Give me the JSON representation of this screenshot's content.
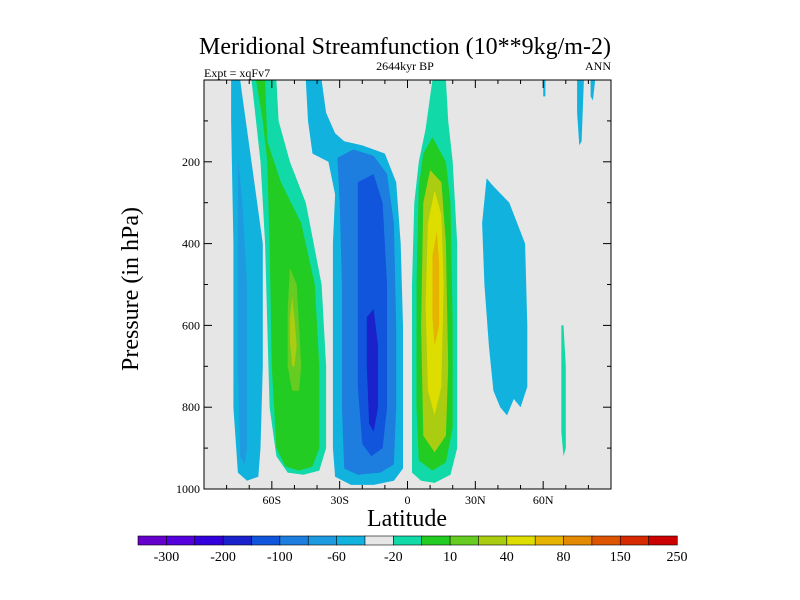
{
  "chart_data": {
    "type": "contour",
    "title": "Meridional Streamfunction (10**9kg/m-2)",
    "subtitle": "2644kyr BP",
    "left_label": "Expt = xqFv7",
    "right_label": "ANN",
    "xlabel": "Latitude",
    "ylabel": "Pressure (in hPa)",
    "xlim": [
      -90,
      90
    ],
    "ylim": [
      0,
      1000
    ],
    "y_inverted": true,
    "x_ticks": [
      {
        "value": -60,
        "label": "60S"
      },
      {
        "value": -30,
        "label": "30S"
      },
      {
        "value": 0,
        "label": "0"
      },
      {
        "value": 30,
        "label": "30N"
      },
      {
        "value": 60,
        "label": "60N"
      }
    ],
    "y_ticks": [
      {
        "value": 200,
        "label": "200"
      },
      {
        "value": 400,
        "label": "400"
      },
      {
        "value": 600,
        "label": "600"
      },
      {
        "value": 800,
        "label": "800"
      },
      {
        "value": 1000,
        "label": "1000"
      }
    ],
    "background_color": "#e6e6e6",
    "colorbar": {
      "colors": [
        "#6600cc",
        "#5500dd",
        "#3300dd",
        "#1a22cc",
        "#1155dd",
        "#1d7ee0",
        "#1e9be0",
        "#11b3de",
        "#e6e6e6",
        "#11d9a8",
        "#22cc22",
        "#66cc22",
        "#aacc11",
        "#dddd00",
        "#e6b400",
        "#e38a00",
        "#dd5500",
        "#d82a00",
        "#cc0000"
      ],
      "labels": [
        {
          "after_index": 1,
          "text": "-300"
        },
        {
          "after_index": 3,
          "text": "-200"
        },
        {
          "after_index": 5,
          "text": "-100"
        },
        {
          "after_index": 7,
          "text": "-60"
        },
        {
          "after_index": 9,
          "text": "-20"
        },
        {
          "after_index": 11,
          "text": "10"
        },
        {
          "after_index": 13,
          "text": "40"
        },
        {
          "after_index": 15,
          "text": "80"
        },
        {
          "after_index": 17,
          "text": "150"
        },
        {
          "after_index": 19,
          "text": "250"
        }
      ]
    },
    "cells": [
      {
        "name": "cell-60s-outer",
        "color": "#11b3de",
        "points": [
          [
            -78,
            0
          ],
          [
            -74,
            0
          ],
          [
            -73,
            40
          ],
          [
            -69,
            200
          ],
          [
            -64,
            400
          ],
          [
            -64,
            700
          ],
          [
            -65,
            900
          ],
          [
            -66,
            970
          ],
          [
            -71,
            980
          ],
          [
            -75,
            960
          ],
          [
            -77,
            800
          ],
          [
            -77,
            400
          ],
          [
            -78,
            100
          ]
        ]
      },
      {
        "name": "cell-60s-core",
        "color": "#1e9be0",
        "points": [
          [
            -75,
            190
          ],
          [
            -73,
            300
          ],
          [
            -71,
            500
          ],
          [
            -71,
            800
          ],
          [
            -71,
            900
          ],
          [
            -72,
            940
          ],
          [
            -74,
            920
          ],
          [
            -75,
            700
          ],
          [
            -75,
            400
          ]
        ]
      },
      {
        "name": "cell-ferrel-outer",
        "color": "#11d9a8",
        "points": [
          [
            -69,
            0
          ],
          [
            -58,
            0
          ],
          [
            -57,
            100
          ],
          [
            -52,
            200
          ],
          [
            -45,
            300
          ],
          [
            -38,
            500
          ],
          [
            -36,
            700
          ],
          [
            -36,
            900
          ],
          [
            -39,
            955
          ],
          [
            -46,
            965
          ],
          [
            -53,
            960
          ],
          [
            -58,
            920
          ],
          [
            -61,
            800
          ],
          [
            -62,
            600
          ],
          [
            -63,
            400
          ],
          [
            -65,
            200
          ],
          [
            -67,
            100
          ]
        ]
      },
      {
        "name": "cell-ferrel-mid",
        "color": "#22cc22",
        "points": [
          [
            -67,
            0
          ],
          [
            -63,
            0
          ],
          [
            -62,
            150
          ],
          [
            -56,
            250
          ],
          [
            -47,
            350
          ],
          [
            -41,
            500
          ],
          [
            -39,
            700
          ],
          [
            -39,
            900
          ],
          [
            -42,
            945
          ],
          [
            -48,
            955
          ],
          [
            -54,
            945
          ],
          [
            -58,
            900
          ],
          [
            -60,
            700
          ],
          [
            -61,
            400
          ],
          [
            -62,
            200
          ],
          [
            -64,
            100
          ]
        ]
      },
      {
        "name": "cell-ferrel-inner",
        "color": "#66cc22",
        "points": [
          [
            -52,
            460
          ],
          [
            -49,
            500
          ],
          [
            -48,
            600
          ],
          [
            -47,
            700
          ],
          [
            -48,
            760
          ],
          [
            -51,
            760
          ],
          [
            -53,
            700
          ],
          [
            -53,
            560
          ]
        ]
      },
      {
        "name": "cell-ferrel-core",
        "color": "#aacc11",
        "points": [
          [
            -51,
            530
          ],
          [
            -50,
            580
          ],
          [
            -49,
            650
          ],
          [
            -50,
            700
          ],
          [
            -51,
            700
          ],
          [
            -52,
            640
          ],
          [
            -52,
            580
          ]
        ]
      },
      {
        "name": "cell-hadley-south-outer",
        "color": "#11b3de",
        "points": [
          [
            -45,
            0
          ],
          [
            -38,
            0
          ],
          [
            -36,
            80
          ],
          [
            -32,
            130
          ],
          [
            -28,
            150
          ],
          [
            -20,
            160
          ],
          [
            -10,
            180
          ],
          [
            -5,
            250
          ],
          [
            -3,
            400
          ],
          [
            -2,
            600
          ],
          [
            -2,
            800
          ],
          [
            -2,
            950
          ],
          [
            -6,
            980
          ],
          [
            -15,
            990
          ],
          [
            -25,
            990
          ],
          [
            -32,
            970
          ],
          [
            -33,
            900
          ],
          [
            -33,
            700
          ],
          [
            -33,
            400
          ],
          [
            -32,
            280
          ],
          [
            -35,
            200
          ],
          [
            -42,
            180
          ],
          [
            -44,
            100
          ]
        ]
      },
      {
        "name": "cell-hadley-south-mid",
        "color": "#1d7ee0",
        "points": [
          [
            -31,
            190
          ],
          [
            -24,
            170
          ],
          [
            -15,
            185
          ],
          [
            -9,
            230
          ],
          [
            -6,
            350
          ],
          [
            -5,
            600
          ],
          [
            -5,
            800
          ],
          [
            -6,
            940
          ],
          [
            -12,
            960
          ],
          [
            -22,
            965
          ],
          [
            -28,
            950
          ],
          [
            -29,
            800
          ],
          [
            -29,
            500
          ],
          [
            -30,
            300
          ]
        ]
      },
      {
        "name": "cell-hadley-south-inner",
        "color": "#1155dd",
        "points": [
          [
            -22,
            250
          ],
          [
            -15,
            230
          ],
          [
            -11,
            300
          ],
          [
            -9,
            500
          ],
          [
            -9,
            800
          ],
          [
            -11,
            900
          ],
          [
            -16,
            920
          ],
          [
            -20,
            890
          ],
          [
            -22,
            750
          ],
          [
            -22,
            500
          ]
        ]
      },
      {
        "name": "cell-hadley-south-core",
        "color": "#1a22cc",
        "points": [
          [
            -18,
            580
          ],
          [
            -15,
            560
          ],
          [
            -13,
            650
          ],
          [
            -13,
            800
          ],
          [
            -15,
            860
          ],
          [
            -17,
            840
          ],
          [
            -18,
            700
          ]
        ]
      },
      {
        "name": "cell-hadley-north-outer",
        "color": "#11d9a8",
        "points": [
          [
            11,
            0
          ],
          [
            17,
            0
          ],
          [
            18,
            100
          ],
          [
            20,
            200
          ],
          [
            22,
            400
          ],
          [
            22,
            700
          ],
          [
            22,
            900
          ],
          [
            19,
            965
          ],
          [
            12,
            985
          ],
          [
            6,
            980
          ],
          [
            2,
            960
          ],
          [
            2,
            800
          ],
          [
            2,
            500
          ],
          [
            3,
            300
          ],
          [
            5,
            200
          ],
          [
            8,
            120
          ]
        ]
      },
      {
        "name": "cell-hadley-north-mid",
        "color": "#22cc22",
        "points": [
          [
            5,
            260
          ],
          [
            7,
            180
          ],
          [
            11,
            140
          ],
          [
            17,
            200
          ],
          [
            19,
            300
          ],
          [
            20,
            600
          ],
          [
            20,
            850
          ],
          [
            17,
            935
          ],
          [
            11,
            955
          ],
          [
            5,
            930
          ],
          [
            4,
            800
          ],
          [
            4,
            500
          ]
        ]
      },
      {
        "name": "cell-hadley-north-inner",
        "color": "#aacc11",
        "points": [
          [
            7,
            300
          ],
          [
            10,
            220
          ],
          [
            15,
            250
          ],
          [
            17,
            400
          ],
          [
            18,
            700
          ],
          [
            17,
            870
          ],
          [
            12,
            910
          ],
          [
            7,
            870
          ],
          [
            6,
            600
          ]
        ]
      },
      {
        "name": "cell-hadley-north-core",
        "color": "#dddd00",
        "points": [
          [
            9,
            350
          ],
          [
            12,
            270
          ],
          [
            15,
            330
          ],
          [
            16,
            500
          ],
          [
            15,
            750
          ],
          [
            12,
            820
          ],
          [
            9,
            760
          ],
          [
            8,
            550
          ]
        ]
      },
      {
        "name": "cell-hadley-north-peak",
        "color": "#e6b400",
        "points": [
          [
            11,
            430
          ],
          [
            13,
            370
          ],
          [
            14,
            450
          ],
          [
            14,
            600
          ],
          [
            12,
            650
          ],
          [
            11,
            580
          ]
        ]
      },
      {
        "name": "cell-nh-mid-blue",
        "color": "#11b3de",
        "points": [
          [
            35,
            240
          ],
          [
            38,
            260
          ],
          [
            45,
            300
          ],
          [
            52,
            400
          ],
          [
            53,
            600
          ],
          [
            53,
            750
          ],
          [
            50,
            800
          ],
          [
            47,
            780
          ],
          [
            44,
            820
          ],
          [
            41,
            800
          ],
          [
            38,
            760
          ],
          [
            36,
            650
          ],
          [
            34,
            500
          ],
          [
            33,
            350
          ]
        ]
      },
      {
        "name": "cell-nh-polar-streak",
        "color": "#11d9a8",
        "points": [
          [
            68,
            600
          ],
          [
            69,
            600
          ],
          [
            70,
            700
          ],
          [
            70,
            900
          ],
          [
            69,
            920
          ],
          [
            68,
            860
          ],
          [
            68,
            700
          ]
        ]
      },
      {
        "name": "cell-nh-top-streak-1",
        "color": "#11b3de",
        "points": [
          [
            60,
            0
          ],
          [
            61,
            0
          ],
          [
            61,
            40
          ],
          [
            60,
            40
          ]
        ]
      },
      {
        "name": "cell-nh-top-streak-2",
        "color": "#11b3de",
        "points": [
          [
            75,
            0
          ],
          [
            78,
            0
          ],
          [
            77,
            150
          ],
          [
            76,
            160
          ],
          [
            75,
            80
          ]
        ]
      },
      {
        "name": "cell-nh-top-streak-3",
        "color": "#11b3de",
        "points": [
          [
            81,
            0
          ],
          [
            83,
            0
          ],
          [
            82,
            50
          ],
          [
            81,
            40
          ]
        ]
      }
    ]
  }
}
